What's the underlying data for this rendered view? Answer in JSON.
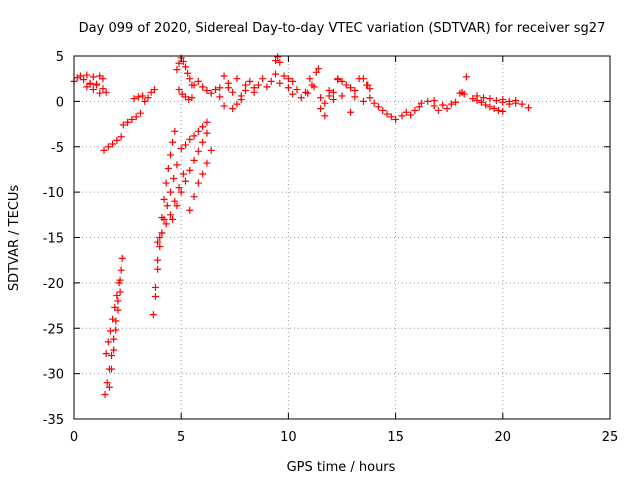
{
  "chart_data": {
    "type": "scatter",
    "title": "Day 099 of 2020, Sidereal Day-to-day VTEC variation (SDTVAR) for receiver sg27",
    "xlabel": "GPS time / hours",
    "ylabel": "SDTVAR / TECUs",
    "xlim": [
      0,
      25
    ],
    "ylim": [
      -35,
      5
    ],
    "xticks": [
      0,
      5,
      10,
      15,
      20,
      25
    ],
    "yticks": [
      5,
      0,
      -5,
      -10,
      -15,
      -20,
      -25,
      -30,
      -35
    ],
    "grid": true,
    "marker": "plus",
    "color": "#ff0000",
    "series": [
      {
        "name": "SDTVAR",
        "segments": [
          {
            "x": [
              0.0,
              0.15,
              0.3,
              0.45,
              0.6,
              0.75,
              0.9,
              1.05,
              1.2,
              1.35
            ],
            "y": [
              2.2,
              2.6,
              2.8,
              2.4,
              2.9,
              2.0,
              2.7,
              1.9,
              2.8,
              2.5
            ]
          },
          {
            "x": [
              0.6,
              0.75,
              0.9,
              1.05,
              1.2,
              1.35,
              1.5
            ],
            "y": [
              1.6,
              1.9,
              1.3,
              1.8,
              0.9,
              1.4,
              1.0
            ]
          },
          {
            "x": [
              1.4,
              1.6,
              1.8,
              2.0,
              2.2
            ],
            "y": [
              -5.4,
              -5.0,
              -4.7,
              -4.3,
              -3.9
            ]
          },
          {
            "x": [
              2.3,
              2.5,
              2.7,
              2.9,
              3.1
            ],
            "y": [
              -2.6,
              -2.3,
              -2.0,
              -1.7,
              -1.3
            ]
          },
          {
            "x": [
              2.8,
              3.0,
              3.2
            ],
            "y": [
              0.3,
              0.5,
              0.6
            ]
          },
          {
            "x": [
              3.3,
              3.45,
              3.6,
              3.75
            ],
            "y": [
              0.0,
              0.4,
              1.0,
              1.3
            ]
          },
          {
            "x": [
              1.45,
              1.55,
              1.65,
              1.75,
              1.85,
              1.95,
              2.05,
              2.15,
              2.25
            ],
            "y": [
              -32.3,
              -31.0,
              -29.5,
              -28.0,
              -26.2,
              -24.2,
              -22.0,
              -19.7,
              -17.3
            ]
          },
          {
            "x": [
              1.5,
              1.6,
              1.7,
              1.8,
              1.9,
              2.0,
              2.1,
              2.2
            ],
            "y": [
              -27.8,
              -26.5,
              -25.3,
              -24.0,
              -22.7,
              -21.4,
              -20.0,
              -18.6
            ]
          },
          {
            "x": [
              1.65,
              1.75,
              1.85,
              1.95,
              2.05,
              2.15
            ],
            "y": [
              -31.5,
              -29.5,
              -27.4,
              -25.2,
              -23.0,
              -21.0
            ]
          },
          {
            "x": [
              3.7,
              3.8,
              3.9,
              4.0,
              4.1,
              4.2,
              4.3,
              4.4,
              4.5,
              4.6,
              4.7
            ],
            "y": [
              -23.5,
              -20.5,
              -17.5,
              -15.0,
              -12.8,
              -10.8,
              -9.0,
              -7.4,
              -5.9,
              -4.5,
              -3.3
            ]
          },
          {
            "x": [
              3.8,
              3.9,
              4.0,
              4.1,
              4.2,
              4.35,
              4.5,
              4.65,
              4.8
            ],
            "y": [
              -21.5,
              -18.5,
              -16.0,
              -14.5,
              -13.0,
              -11.5,
              -10.0,
              -8.5,
              -7.0
            ]
          },
          {
            "x": [
              3.9,
              4.1,
              4.3,
              4.5,
              4.7,
              4.9,
              5.1
            ],
            "y": [
              -15.5,
              -14.5,
              -13.5,
              -12.5,
              -11.0,
              -9.5,
              -8.0
            ]
          },
          {
            "x": [
              4.6,
              4.8,
              5.0,
              5.2,
              5.4,
              5.6,
              5.8,
              6.0,
              6.2
            ],
            "y": [
              -13.0,
              -11.5,
              -10.0,
              -8.8,
              -7.6,
              -6.5,
              -5.5,
              -4.5,
              -3.5
            ]
          },
          {
            "x": [
              5.0,
              5.2,
              5.4,
              5.6,
              5.8,
              6.0,
              6.2
            ],
            "y": [
              -5.2,
              -4.8,
              -4.2,
              -3.8,
              -3.3,
              -2.8,
              -2.3
            ]
          },
          {
            "x": [
              5.4,
              5.6,
              5.8,
              6.0,
              6.2,
              6.4
            ],
            "y": [
              -12.0,
              -10.5,
              -9.0,
              -8.0,
              -6.8,
              -5.4
            ]
          },
          {
            "x": [
              4.8,
              4.9,
              5.0,
              5.1,
              5.2,
              5.3,
              5.4,
              5.5
            ],
            "y": [
              3.5,
              4.2,
              4.8,
              4.4,
              3.8,
              3.1,
              2.5,
              1.8
            ]
          },
          {
            "x": [
              4.9,
              5.05,
              5.2,
              5.35,
              5.5
            ],
            "y": [
              1.3,
              0.8,
              0.5,
              0.2,
              0.4
            ]
          },
          {
            "x": [
              5.6,
              5.8,
              6.0,
              6.2,
              6.4,
              6.6,
              6.8
            ],
            "y": [
              1.8,
              2.2,
              1.6,
              1.2,
              0.9,
              1.3,
              1.5
            ]
          },
          {
            "x": [
              6.8,
              7.0,
              7.2,
              7.4,
              7.6,
              7.8,
              8.0
            ],
            "y": [
              0.5,
              -0.5,
              1.5,
              -0.8,
              2.5,
              0.2,
              1.8
            ]
          },
          {
            "x": [
              7.0,
              7.2,
              7.4,
              7.6,
              7.8,
              8.0,
              8.2,
              8.4
            ],
            "y": [
              2.8,
              2.0,
              1.0,
              -0.3,
              0.6,
              1.2,
              2.2,
              1.5
            ]
          },
          {
            "x": [
              8.4,
              8.6,
              8.8,
              9.0,
              9.2,
              9.4,
              9.6
            ],
            "y": [
              1.0,
              1.8,
              2.5,
              1.6,
              2.2,
              3.0,
              2.0
            ]
          },
          {
            "x": [
              9.4,
              9.5,
              9.6
            ],
            "y": [
              4.5,
              4.9,
              4.3
            ]
          },
          {
            "x": [
              9.8,
              10.0,
              10.2
            ],
            "y": [
              2.8,
              2.5,
              2.2
            ]
          },
          {
            "x": [
              10.0,
              10.2,
              10.4,
              10.6,
              10.8,
              11.0,
              11.2,
              11.4
            ],
            "y": [
              1.5,
              0.8,
              1.3,
              0.4,
              1.0,
              2.5,
              1.6,
              3.6
            ]
          },
          {
            "x": [
              10.9,
              11.1,
              11.3,
              11.5,
              11.7,
              11.9,
              12.1,
              12.3,
              12.5
            ],
            "y": [
              0.9,
              1.8,
              3.2,
              0.4,
              -1.6,
              1.2,
              0.2,
              2.4,
              0.6
            ]
          },
          {
            "x": [
              11.5,
              11.7,
              11.9,
              12.1
            ],
            "y": [
              -0.8,
              -0.2,
              0.6,
              1.0
            ]
          },
          {
            "x": [
              12.3,
              12.5,
              12.7,
              12.9,
              13.1
            ],
            "y": [
              2.5,
              2.2,
              1.8,
              1.5,
              1.2
            ]
          },
          {
            "x": [
              12.9,
              13.1,
              13.3,
              13.5,
              13.7
            ],
            "y": [
              -1.2,
              0.5,
              2.5,
              0.0,
              1.8
            ]
          },
          {
            "x": [
              13.5,
              13.65,
              13.8
            ],
            "y": [
              2.5,
              1.8,
              1.4
            ]
          },
          {
            "x": [
              13.8,
              14.0,
              14.2,
              14.4,
              14.6,
              14.8,
              15.0
            ],
            "y": [
              0.4,
              -0.2,
              -0.6,
              -1.0,
              -1.4,
              -1.7,
              -2.0
            ]
          },
          {
            "x": [
              15.3,
              15.5,
              15.7,
              15.9,
              16.1
            ],
            "y": [
              -1.6,
              -1.2,
              -1.5,
              -1.0,
              -0.6
            ]
          },
          {
            "x": [
              16.2,
              16.5,
              16.8
            ],
            "y": [
              -0.2,
              0.0,
              0.1
            ]
          },
          {
            "x": [
              16.8,
              17.0,
              17.2,
              17.4,
              17.6,
              17.8
            ],
            "y": [
              -0.5,
              -1.0,
              -0.4,
              -0.8,
              -0.3,
              -0.1
            ]
          },
          {
            "x": [
              18.0,
              18.1,
              18.2
            ],
            "y": [
              0.9,
              1.0,
              0.8
            ]
          },
          {
            "x": [
              18.3
            ],
            "y": [
              2.7
            ]
          },
          {
            "x": [
              18.6,
              18.8,
              19.0,
              19.2,
              19.4,
              19.6,
              19.8,
              20.0
            ],
            "y": [
              0.3,
              0.1,
              -0.1,
              -0.4,
              -0.6,
              -0.8,
              -1.0,
              -1.1
            ]
          },
          {
            "x": [
              18.8,
              19.1,
              19.4,
              19.7,
              20.0,
              20.3,
              20.6
            ],
            "y": [
              0.6,
              0.4,
              0.3,
              0.1,
              -0.1,
              -0.3,
              -0.2
            ]
          },
          {
            "x": [
              20.0,
              20.3,
              20.6,
              20.9,
              21.2
            ],
            "y": [
              0.2,
              0.0,
              0.1,
              -0.3,
              -0.7
            ]
          }
        ]
      }
    ]
  }
}
